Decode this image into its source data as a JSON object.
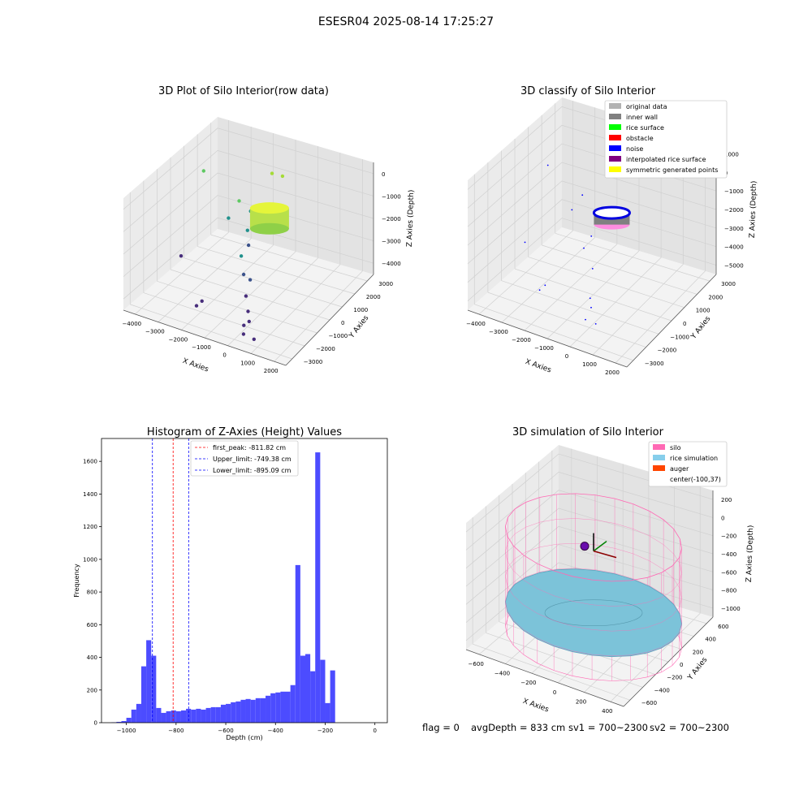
{
  "figure_title": "ESESR04 2025-08-14 17:25:27",
  "status_line": {
    "flag": "flag = 0",
    "avg_depth": "avgDepth = 833 cm",
    "sv1": "sv1 = 700~2300",
    "sv2": "sv2 = 700~2300"
  },
  "chart_data": [
    {
      "type": "scatter",
      "projection": "3d",
      "title": "3D Plot of Silo Interior(row data)",
      "xlabel": "X Axies",
      "ylabel": "Y Axies",
      "zlabel": "Z Axies (Depth)",
      "x_ticks": [
        "−4000",
        "−3000",
        "−2000",
        "−1000",
        "0",
        "1000",
        "2000"
      ],
      "y_ticks": [
        "−3000",
        "−2000",
        "−1000",
        "0",
        "1000",
        "2000",
        "3000"
      ],
      "z_ticks": [
        "0",
        "−1000",
        "−2000",
        "−3000",
        "−4000"
      ],
      "xlim": [
        -4000,
        2300
      ],
      "ylim": [
        -3300,
        3600
      ],
      "zlim": [
        -4500,
        200
      ],
      "colormap": "viridis",
      "points": [
        [
          -3800,
          2200,
          -1300
        ],
        [
          -3300,
          -400,
          -3400
        ],
        [
          -2200,
          1000,
          -2100
        ],
        [
          -2000,
          1400,
          -1500
        ],
        [
          -1500,
          1300,
          -1700
        ],
        [
          -1800,
          -1700,
          -4100
        ],
        [
          -1800,
          -2100,
          -4100
        ],
        [
          -1200,
          2300,
          -500
        ],
        [
          -1000,
          200,
          -2400
        ],
        [
          -1200,
          500,
          -2000
        ],
        [
          -700,
          -900,
          -2200
        ],
        [
          -500,
          -1100,
          -2800
        ],
        [
          -300,
          -1000,
          -3000
        ],
        [
          -200,
          -1500,
          -3400
        ],
        [
          200,
          -2100,
          -3600
        ],
        [
          300,
          -2600,
          -3900
        ],
        [
          500,
          -3000,
          -4000
        ],
        [
          800,
          -2800,
          -4200
        ],
        [
          400,
          -2400,
          -3800
        ],
        [
          -900,
          2500,
          -600
        ]
      ],
      "cylinder": {
        "center": [
          -100,
          37
        ],
        "radius": 420,
        "z_top": -700,
        "z_bottom": -1300
      }
    },
    {
      "type": "scatter",
      "projection": "3d",
      "title": "3D classify of Silo Interior",
      "xlabel": "X Axies",
      "ylabel": "Y Axies",
      "zlabel": "Z Axies (Depth)",
      "x_ticks": [
        "−4000",
        "−3000",
        "−2000",
        "−1000",
        "0",
        "1000",
        "2000"
      ],
      "y_ticks": [
        "−3000",
        "−2000",
        "−1000",
        "0",
        "1000",
        "2000",
        "3000"
      ],
      "z_ticks": [
        "1000",
        "0",
        "−1000",
        "−2000",
        "−3000",
        "−4000",
        "−5000"
      ],
      "xlim": [
        -4000,
        2300
      ],
      "ylim": [
        -3300,
        3600
      ],
      "zlim": [
        -5400,
        1200
      ],
      "legend": [
        {
          "label": "original data",
          "color": "#b2b2b2"
        },
        {
          "label": "inner wall",
          "color": "#808080"
        },
        {
          "label": "rice surface",
          "color": "#00ff00"
        },
        {
          "label": "obstacle",
          "color": "#ff0000"
        },
        {
          "label": "noise",
          "color": "#0000ff"
        },
        {
          "label": "interpolated rice surface",
          "color": "#800080"
        },
        {
          "label": "symmetric generated points",
          "color": "#ffff00"
        }
      ],
      "legend_loc": "upper right",
      "noise_points": [
        [
          -3800,
          2200,
          -1300
        ],
        [
          -3300,
          -400,
          -3400
        ],
        [
          -2200,
          1000,
          -2100
        ],
        [
          -2000,
          1400,
          -1500
        ],
        [
          -1800,
          -1700,
          -4100
        ],
        [
          -1800,
          -2100,
          -4100
        ],
        [
          -1000,
          200,
          -2400
        ],
        [
          -700,
          -900,
          -2200
        ],
        [
          -300,
          -1000,
          -3000
        ],
        [
          200,
          -2100,
          -3600
        ],
        [
          500,
          -3000,
          -4000
        ],
        [
          800,
          -2800,
          -4200
        ],
        [
          -1200,
          2300,
          -500
        ],
        [
          400,
          -2400,
          -3800
        ]
      ],
      "cylinder": {
        "center": [
          -100,
          37
        ],
        "radius": 420,
        "z_top": -700,
        "z_bottom": -1300
      }
    },
    {
      "type": "bar",
      "title": "Histogram of Z-Axies (Height) Values",
      "xlabel": "Depth (cm)",
      "ylabel": "Frequency",
      "xlim": [
        -1100,
        50
      ],
      "ylim": [
        0,
        1740
      ],
      "x_ticks": [
        "−1000",
        "−800",
        "−600",
        "−400",
        "−200",
        "0"
      ],
      "y_ticks": [
        "0",
        "200",
        "400",
        "600",
        "800",
        "1000",
        "1200",
        "1400",
        "1600"
      ],
      "bar_color": "#4c4cff",
      "bin_start": -1100,
      "bin_width": 20,
      "values": [
        0,
        0,
        2,
        5,
        10,
        30,
        80,
        115,
        345,
        505,
        410,
        90,
        60,
        70,
        75,
        70,
        75,
        85,
        80,
        85,
        80,
        90,
        95,
        95,
        110,
        115,
        125,
        130,
        140,
        145,
        140,
        150,
        150,
        165,
        180,
        185,
        190,
        190,
        230,
        965,
        410,
        420,
        315,
        1655,
        385,
        120,
        320
      ],
      "vlines": [
        {
          "x": -811.82,
          "label": "first_peak: -811.82 cm",
          "color": "#ff0000"
        },
        {
          "x": -749.38,
          "label": "Upper_limit: -749.38 cm",
          "color": "#0000ff"
        },
        {
          "x": -895.09,
          "label": "Lower_limit: -895.09 cm",
          "color": "#0000ff"
        }
      ],
      "legend_loc": "upper left"
    },
    {
      "type": "surface",
      "projection": "3d",
      "title": "3D simulation of Silo Interior",
      "xlabel": "X Axies",
      "ylabel": "Y Axies",
      "zlabel": "Z Axies (Depth)",
      "x_ticks": [
        "−600",
        "−400",
        "−200",
        "0",
        "200",
        "400"
      ],
      "y_ticks": [
        "−600",
        "−400",
        "−200",
        "0",
        "200",
        "400",
        "600"
      ],
      "z_ticks": [
        "200",
        "0",
        "−200",
        "−400",
        "−600",
        "−800",
        "−1000"
      ],
      "xlim": [
        -700,
        500
      ],
      "ylim": [
        -700,
        700
      ],
      "zlim": [
        -1100,
        300
      ],
      "legend": [
        {
          "label": "silo",
          "color": "#ff69b4"
        },
        {
          "label": "rice simulation",
          "color": "#87ceeb"
        },
        {
          "label": "auger",
          "color": "#ff4500"
        },
        {
          "label": "center(-100,37)",
          "color": ""
        }
      ],
      "legend_loc": "upper right",
      "silo": {
        "center": [
          -100,
          37
        ],
        "radius": 600,
        "z_top": 0,
        "z_bottom": -1100
      },
      "rice_surface_depth": -833
    }
  ]
}
